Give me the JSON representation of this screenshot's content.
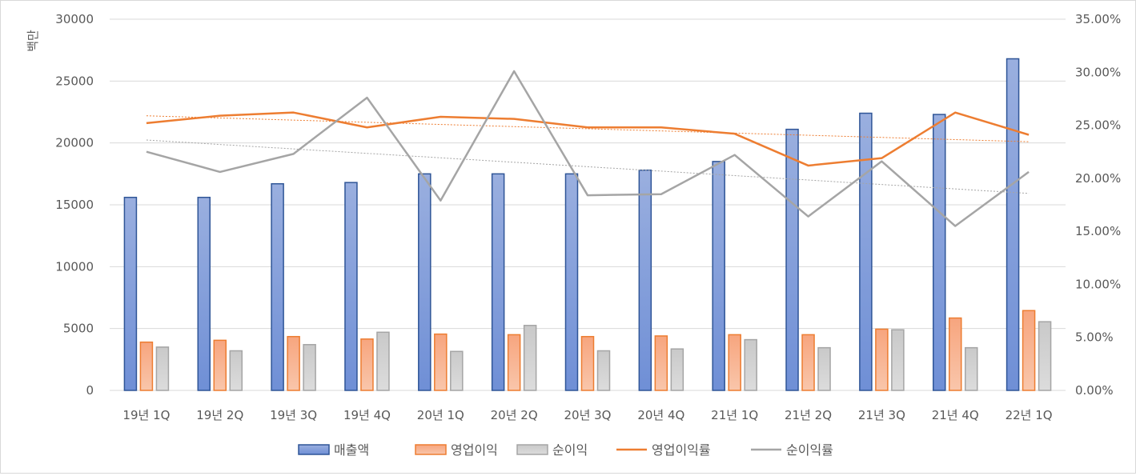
{
  "chart_data": {
    "type": "bar",
    "title": "",
    "ylabel": "백만",
    "ylim": [
      0,
      30000
    ],
    "y_ticks": [
      "30000",
      "25000",
      "20000",
      "15000",
      "10000",
      "5000",
      "0"
    ],
    "y2lim": [
      0,
      35
    ],
    "y2_ticks": [
      "35.00%",
      "30.00%",
      "25.00%",
      "20.00%",
      "15.00%",
      "10.00%",
      "5.00%",
      "0.00%"
    ],
    "grid": true,
    "legend_position": "bottom",
    "categories": [
      "19년 1Q",
      "19년 2Q",
      "19년 3Q",
      "19년 4Q",
      "20년 1Q",
      "20년 2Q",
      "20년 3Q",
      "20년 4Q",
      "21년 1Q",
      "21년 2Q",
      "21년 3Q",
      "21년 4Q",
      "22년 1Q"
    ],
    "series": [
      {
        "name": "매출액",
        "type": "bar",
        "axis": "left",
        "color": "#4472c4",
        "values": [
          15600,
          15600,
          16700,
          16800,
          17500,
          17500,
          17500,
          17800,
          18500,
          21100,
          22400,
          22300,
          26800
        ]
      },
      {
        "name": "영업이익",
        "type": "bar",
        "axis": "left",
        "color": "#ed7d31",
        "values": [
          3900,
          4050,
          4350,
          4150,
          4550,
          4500,
          4350,
          4400,
          4500,
          4500,
          4950,
          5850,
          6450
        ]
      },
      {
        "name": "순이익",
        "type": "bar",
        "axis": "left",
        "color": "#a5a5a5",
        "values": [
          3500,
          3200,
          3700,
          4700,
          3150,
          5250,
          3200,
          3350,
          4100,
          3450,
          4900,
          3450,
          5550
        ]
      },
      {
        "name": "영업이익률",
        "type": "line",
        "axis": "right",
        "color": "#ed7d31",
        "trendline": true,
        "values": [
          25.2,
          25.9,
          26.2,
          24.8,
          25.8,
          25.6,
          24.8,
          24.8,
          24.2,
          21.2,
          21.9,
          26.2,
          24.1
        ]
      },
      {
        "name": "순이익률",
        "type": "line",
        "axis": "right",
        "color": "#a5a5a5",
        "trendline": true,
        "values": [
          22.5,
          20.6,
          22.3,
          27.6,
          17.9,
          30.1,
          18.4,
          18.5,
          22.2,
          16.4,
          21.6,
          15.5,
          20.6
        ]
      }
    ]
  }
}
